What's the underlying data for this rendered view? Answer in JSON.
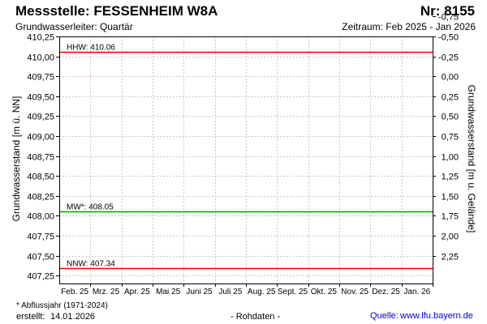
{
  "header": {
    "title": "Messstelle: FESSENHEIM W8A",
    "nr": "Nr: 8155",
    "subtitle": "Grundwasserleiter: Quartär",
    "period": "Zeitraum: Feb 2025 - Jan 2026"
  },
  "footer": {
    "footnote": "* Abflussjahr (1971-2024)",
    "created_label": "erstellt:",
    "created_date": "14.01.2026",
    "data_note": "- Rohdaten -",
    "source_label": "Quelle:",
    "source_url": "www.lfu.bayern.de"
  },
  "chart_data": {
    "type": "line",
    "ylabel": "Grundwasserstand [m ü. NN]",
    "y2label": "Grundwasserstand [m u. Gelände]",
    "ylim": [
      407.15,
      410.25
    ],
    "yticks": [
      "410,25",
      "410,00",
      "409,75",
      "409,50",
      "409,25",
      "409,00",
      "408,75",
      "408,50",
      "408,25",
      "408,00",
      "407,75",
      "407,50",
      "407,25"
    ],
    "ytick_values": [
      410.25,
      410.0,
      409.75,
      409.5,
      409.25,
      409.0,
      408.75,
      408.5,
      408.25,
      408.0,
      407.75,
      407.5,
      407.25
    ],
    "y2ticks": [
      "-0,75",
      "-0,50",
      "-0,25",
      "0,00",
      "0,25",
      "0,50",
      "0,75",
      "1,00",
      "1,25",
      "1,50",
      "1,75",
      "2,00",
      "2,25"
    ],
    "y2tick_values": [
      -0.75,
      -0.5,
      -0.25,
      0.0,
      0.25,
      0.5,
      0.75,
      1.0,
      1.25,
      1.5,
      1.75,
      2.0,
      2.25
    ],
    "y2_reference_level": 409.75,
    "categories": [
      "Feb. 25",
      "Mrz. 25",
      "Apr. 25",
      "Mai 25",
      "Juni 25",
      "Juli 25",
      "Aug. 25",
      "Sept. 25",
      "Okt. 25",
      "Nov. 25",
      "Dez. 25",
      "Jan. 26"
    ],
    "grid": true,
    "reference_lines": [
      {
        "label": "HHW: 410.06",
        "value": 410.06,
        "color": "#ff0000"
      },
      {
        "label": "MW*: 408.05",
        "value": 408.05,
        "color": "#00a000"
      },
      {
        "label": "NNW: 407.34",
        "value": 407.34,
        "color": "#ff0000"
      }
    ]
  }
}
